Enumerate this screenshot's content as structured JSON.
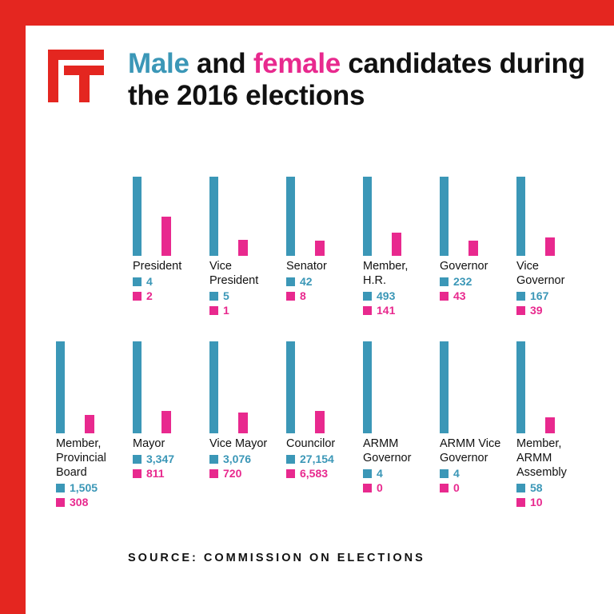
{
  "colors": {
    "male": "#3b97b7",
    "female": "#e8298e",
    "frame": "#e42620"
  },
  "title_parts": {
    "male_word": "Male",
    "and_word": " and ",
    "female_word": "female",
    "rest": " candidates during the 2016 elections"
  },
  "source": "SOURCE: COMMISSION ON ELECTIONS",
  "chart_data": {
    "type": "bar",
    "title": "Male and female candidates during the 2016 elections",
    "series_names": [
      "Male",
      "Female"
    ],
    "categories": [
      {
        "label": [
          "President"
        ],
        "male": 4,
        "female": 2
      },
      {
        "label": [
          "Vice",
          "President"
        ],
        "male": 5,
        "female": 1
      },
      {
        "label": [
          "Senator"
        ],
        "male": 42,
        "female": 8
      },
      {
        "label": [
          "Member,",
          "H.R."
        ],
        "male": 493,
        "female": 141
      },
      {
        "label": [
          "Governor"
        ],
        "male": 232,
        "female": 43
      },
      {
        "label": [
          "Vice",
          "Governor"
        ],
        "male": 167,
        "female": 39
      },
      {
        "label": [
          "Member,",
          "Provincial",
          "Board"
        ],
        "male": 1505,
        "female": 308
      },
      {
        "label": [
          "Mayor"
        ],
        "male": 3347,
        "female": 811
      },
      {
        "label": [
          "Vice Mayor"
        ],
        "male": 3076,
        "female": 720
      },
      {
        "label": [
          "Councilor"
        ],
        "male": 27154,
        "female": 6583
      },
      {
        "label": [
          "ARMM",
          "Governor"
        ],
        "male": 4,
        "female": 0
      },
      {
        "label": [
          "ARMM Vice",
          "Governor"
        ],
        "male": 4,
        "female": 0
      },
      {
        "label": [
          "Member,",
          "ARMM",
          "Assembly"
        ],
        "male": 58,
        "female": 10
      }
    ]
  }
}
